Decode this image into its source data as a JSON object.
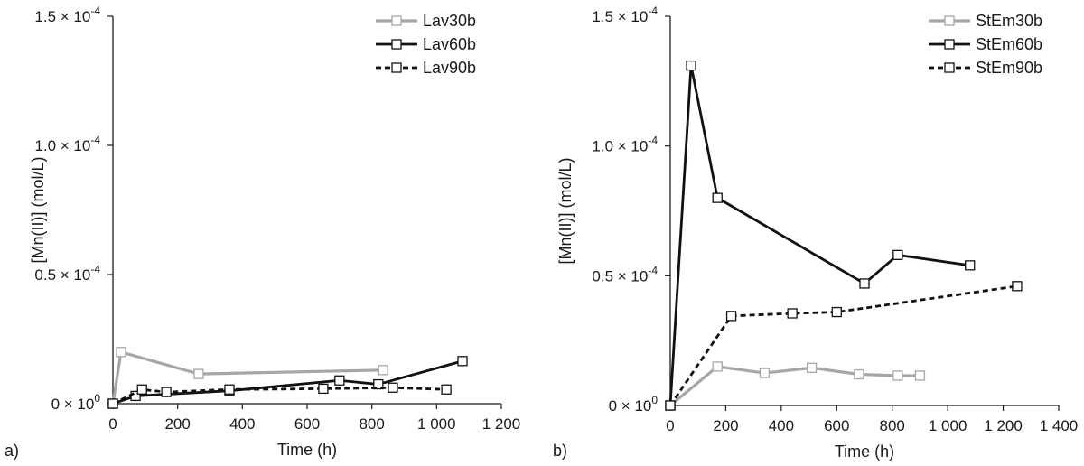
{
  "chart_data": [
    {
      "type": "line",
      "panel_label": "a)",
      "xlabel": "Time (h)",
      "ylabel": "[Mn(II)] (mol/L)",
      "xlim": [
        0,
        1200
      ],
      "ylim": [
        0,
        0.00015
      ],
      "xticks": [
        0,
        200,
        400,
        600,
        800,
        1000,
        1200
      ],
      "xtick_labels": [
        "0",
        "200",
        "400",
        "600",
        "800",
        "1 000",
        "1 200"
      ],
      "yticks": [
        {
          "value": 0,
          "mantissa": "0",
          "exponent": "0"
        },
        {
          "value": 5e-05,
          "mantissa": "0.5",
          "exponent": "-4"
        },
        {
          "value": 0.0001,
          "mantissa": "1.0",
          "exponent": "-4"
        },
        {
          "value": 0.00015,
          "mantissa": "1.5",
          "exponent": "-4"
        }
      ],
      "legend_position": "top-right",
      "series": [
        {
          "name": "Lav30b",
          "color": "#a6a6a6",
          "dash": "solid",
          "x": [
            0,
            25,
            265,
            835
          ],
          "y": [
            0,
            2e-05,
            1.15e-05,
            1.3e-05
          ]
        },
        {
          "name": "Lav60b",
          "color": "#111111",
          "dash": "solid",
          "x": [
            0,
            70,
            360,
            700,
            820,
            1080
          ],
          "y": [
            0,
            3e-06,
            5e-06,
            9e-06,
            7.5e-06,
            1.65e-05
          ]
        },
        {
          "name": "Lav90b",
          "color": "#111111",
          "dash": "dashed",
          "x": [
            0,
            90,
            165,
            360,
            650,
            865,
            1030
          ],
          "y": [
            0,
            5.5e-06,
            4.5e-06,
            5.5e-06,
            5.8e-06,
            6.2e-06,
            5.5e-06
          ]
        }
      ]
    },
    {
      "type": "line",
      "panel_label": "b)",
      "xlabel": "Time (h)",
      "ylabel": "[Mn(II)] (mol/L)",
      "xlim": [
        0,
        1400
      ],
      "ylim": [
        0,
        0.00015
      ],
      "xticks": [
        0,
        200,
        400,
        600,
        800,
        1000,
        1200,
        1400
      ],
      "xtick_labels": [
        "0",
        "200",
        "400",
        "600",
        "800",
        "1 000",
        "1 200",
        "1 400"
      ],
      "yticks": [
        {
          "value": 0,
          "mantissa": "0",
          "exponent": "0"
        },
        {
          "value": 5e-05,
          "mantissa": "0.5",
          "exponent": "-4"
        },
        {
          "value": 0.0001,
          "mantissa": "1.0",
          "exponent": "-4"
        },
        {
          "value": 0.00015,
          "mantissa": "1.5",
          "exponent": "-4"
        }
      ],
      "legend_position": "top-right",
      "series": [
        {
          "name": "StEm30b",
          "color": "#a6a6a6",
          "dash": "solid",
          "x": [
            0,
            170,
            340,
            510,
            680,
            820,
            900
          ],
          "y": [
            0,
            1.5e-05,
            1.25e-05,
            1.45e-05,
            1.2e-05,
            1.15e-05,
            1.15e-05
          ]
        },
        {
          "name": "StEm60b",
          "color": "#111111",
          "dash": "solid",
          "x": [
            0,
            75,
            170,
            700,
            820,
            1080
          ],
          "y": [
            0,
            0.000131,
            8e-05,
            4.7e-05,
            5.8e-05,
            5.4e-05
          ]
        },
        {
          "name": "StEm90b",
          "color": "#111111",
          "dash": "dashed",
          "x": [
            0,
            220,
            440,
            600,
            1250
          ],
          "y": [
            0,
            3.45e-05,
            3.55e-05,
            3.6e-05,
            4.6e-05
          ]
        }
      ]
    }
  ]
}
